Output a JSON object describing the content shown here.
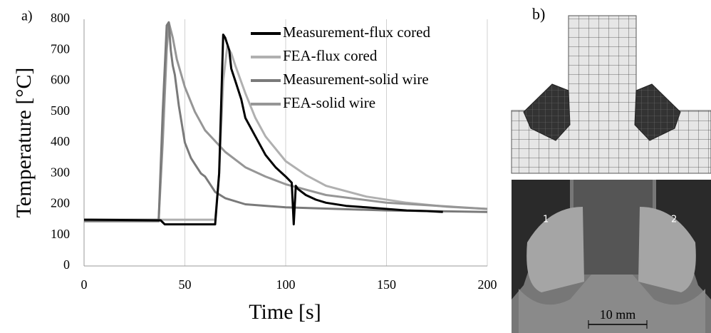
{
  "chart_data": {
    "type": "line",
    "label": "a)",
    "xlabel": "Time [s]",
    "ylabel": "Temperature [°C]",
    "xlim": [
      0,
      200
    ],
    "xticks": [
      0,
      50,
      100,
      150,
      200
    ],
    "ylim": [
      0,
      800
    ],
    "yticks": [
      0,
      100,
      200,
      300,
      400,
      500,
      600,
      700,
      800
    ],
    "grid": "x",
    "legend": "upper right",
    "series": [
      {
        "name": "Measurement-flux cored",
        "color": "#000000",
        "x": [
          0,
          38,
          40,
          65,
          67,
          69,
          70,
          71,
          72,
          73,
          75,
          78,
          80,
          85,
          90,
          95,
          100,
          103,
          104,
          105,
          106,
          110,
          115,
          120,
          130,
          140,
          150,
          160,
          170,
          178
        ],
        "values": [
          150,
          148,
          135,
          135,
          300,
          750,
          740,
          720,
          700,
          640,
          600,
          540,
          480,
          420,
          360,
          320,
          290,
          270,
          135,
          260,
          250,
          230,
          215,
          205,
          195,
          190,
          185,
          180,
          178,
          175
        ]
      },
      {
        "name": "FEA-flux cored",
        "color": "#b0b0b0",
        "x": [
          0,
          65,
          67,
          69,
          71,
          73,
          75,
          80,
          85,
          90,
          100,
          110,
          120,
          140,
          160,
          180,
          200
        ],
        "values": [
          150,
          150,
          300,
          600,
          710,
          690,
          650,
          560,
          480,
          420,
          340,
          295,
          260,
          225,
          205,
          192,
          185
        ]
      },
      {
        "name": "Measurement-solid wire",
        "color": "#7a7a7a",
        "x": [
          0,
          37,
          39,
          41,
          42,
          43,
          44,
          45,
          47,
          50,
          53,
          55,
          58,
          60,
          62,
          65,
          70,
          80,
          100,
          150,
          200
        ],
        "values": [
          145,
          145,
          500,
          780,
          790,
          700,
          650,
          620,
          520,
          400,
          350,
          330,
          300,
          290,
          270,
          240,
          220,
          200,
          190,
          180,
          175
        ]
      },
      {
        "name": "FEA-solid wire",
        "color": "#969696",
        "x": [
          0,
          37,
          39,
          41,
          42,
          44,
          46,
          50,
          55,
          60,
          70,
          80,
          90,
          100,
          120,
          150,
          200
        ],
        "values": [
          150,
          150,
          400,
          700,
          790,
          740,
          670,
          580,
          500,
          440,
          370,
          320,
          290,
          265,
          230,
          205,
          185
        ]
      }
    ]
  },
  "panel_b": {
    "label": "b)",
    "markers": [
      "1",
      "2"
    ],
    "scale": "10 mm"
  }
}
